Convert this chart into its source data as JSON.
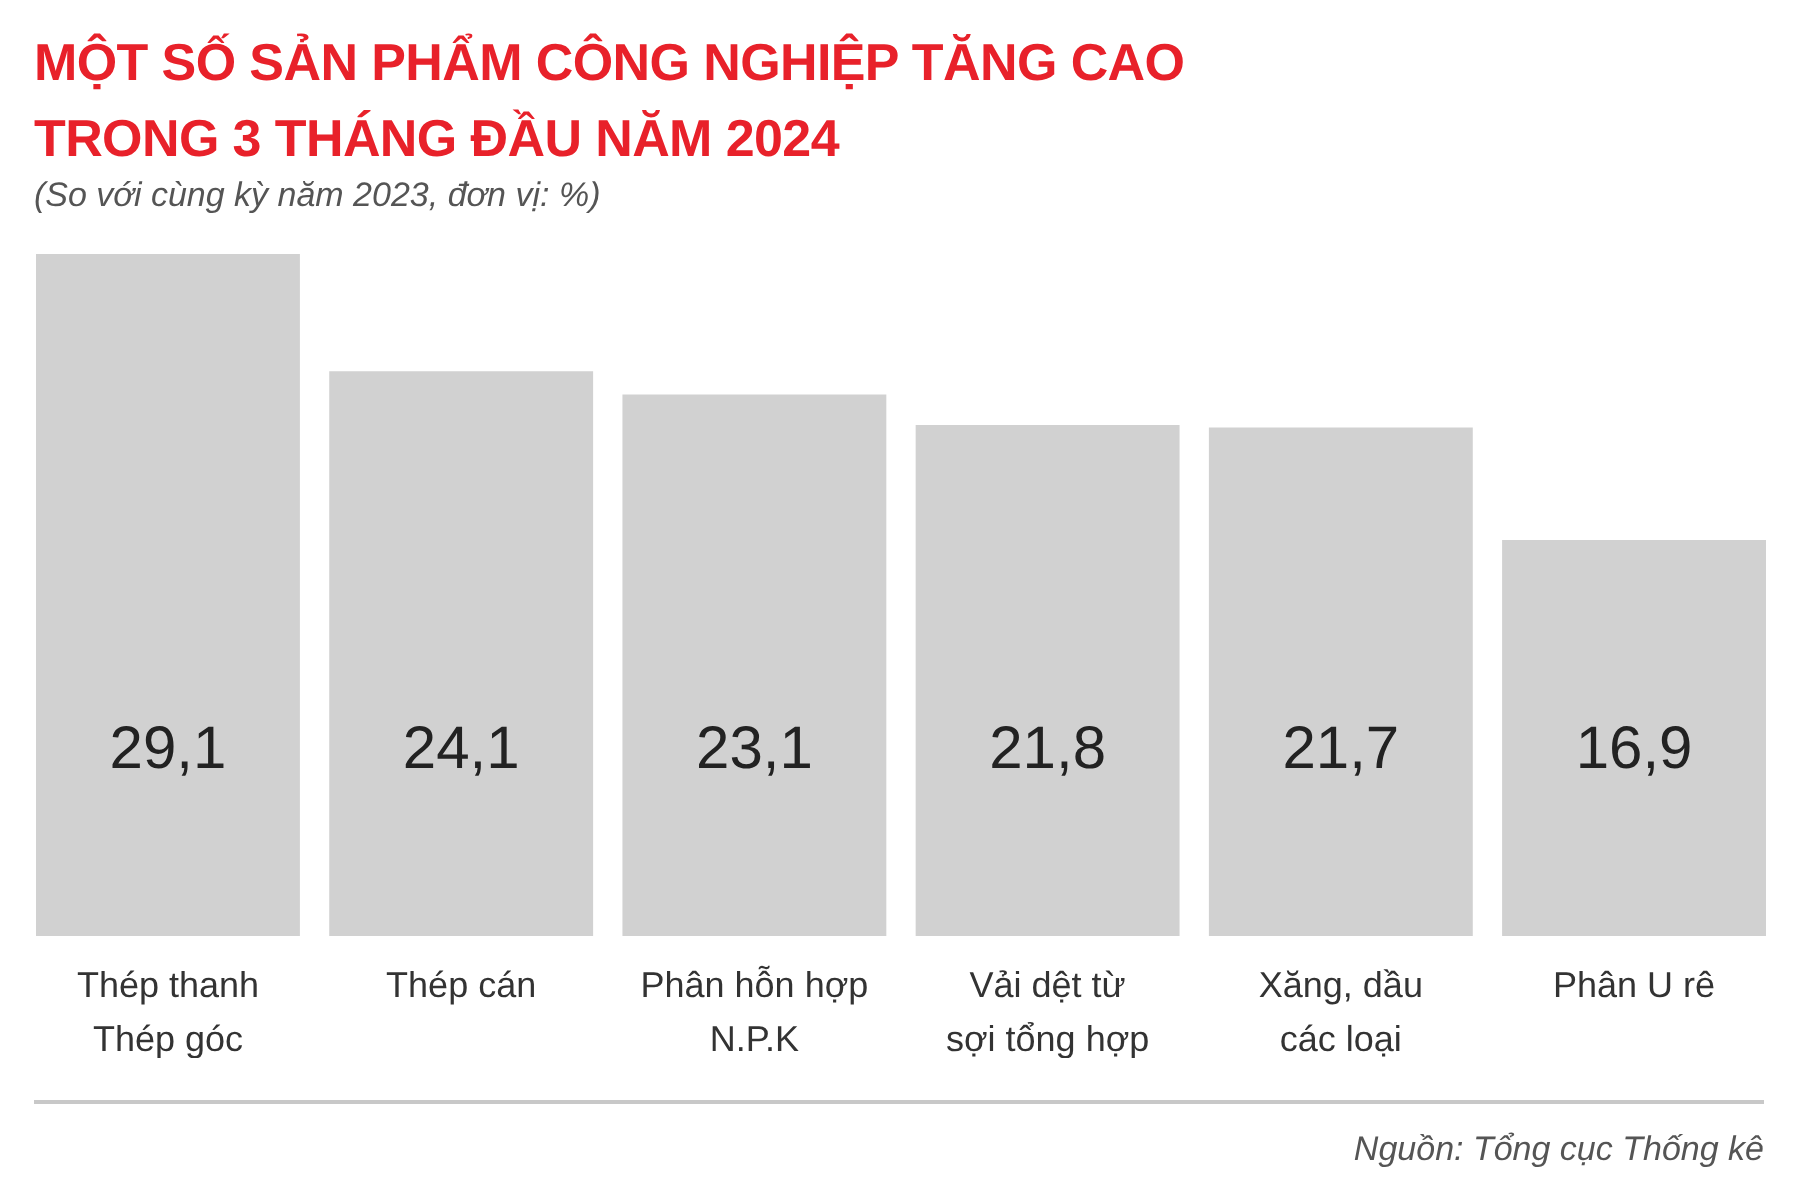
{
  "chart_data": {
    "type": "bar",
    "title": "MỘT SỐ SẢN PHẨM CÔNG NGHIỆP TĂNG CAO\nTRONG 3 THÁNG ĐẦU NĂM 2024",
    "subtitle": "(So với cùng kỳ năm 2023, đơn vị: %)",
    "categories": [
      "Thép thanh\nThép góc",
      "Thép cán",
      "Phân hỗn hợp\nN.P.K",
      "Vải dệt từ\nsợi tổng hợp",
      "Xăng, dầu\ncác loại",
      "Phân U rê"
    ],
    "values": [
      29.1,
      24.1,
      23.1,
      21.8,
      21.7,
      16.9
    ],
    "value_labels": [
      "29,1",
      "24,1",
      "23,1",
      "21,8",
      "21,7",
      "16,9"
    ],
    "color": "#d1d1d1",
    "annotations": [
      "Nguồn: Tổng cục Thống kê"
    ]
  }
}
